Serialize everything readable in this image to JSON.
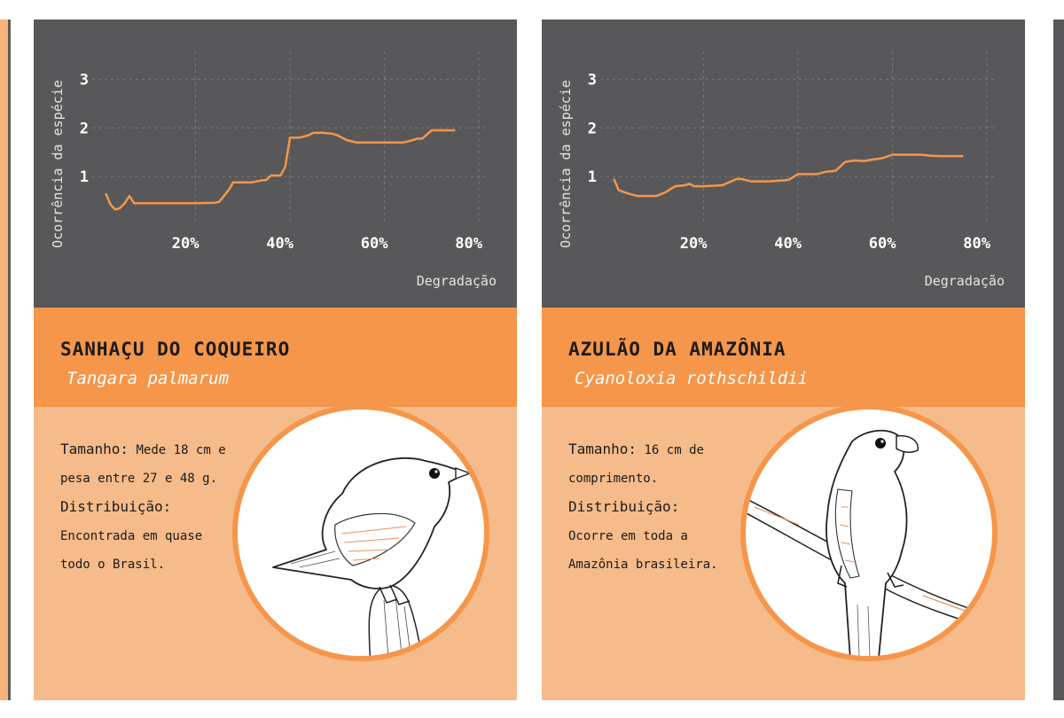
{
  "cards": [
    {
      "common_name": "SANHAÇU DO COQUEIRO",
      "scientific_name": "Tangara palmarum",
      "size_label": "Tamanho:",
      "size_text": "Mede 18 cm e pesa entre 27 e 48 g.",
      "distribution_label": "Distribuição:",
      "distribution_text": "Encontrada em quase todo o Brasil.",
      "illustration_icon": "bird-illustration-icon",
      "chart_data": {
        "type": "line",
        "ylabel": "Ocorrência da espécie",
        "xlabel": "Degradação",
        "x_ticks": [
          "20%",
          "40%",
          "60%",
          "80%"
        ],
        "y_ticks": [
          "1",
          "2",
          "3"
        ],
        "xlim": [
          0,
          80
        ],
        "ylim": [
          0,
          3.5
        ],
        "grid": true,
        "series": [
          {
            "color": "#f5964a",
            "x": [
              1,
              2,
              3,
              4,
              5,
              6,
              7,
              8,
              10,
              15,
              20,
              24,
              25,
              27,
              28,
              30,
              32,
              34,
              35,
              36,
              38,
              39,
              40,
              42,
              44,
              45,
              47,
              49,
              50,
              52,
              54,
              56,
              58,
              60,
              62,
              64,
              65,
              67,
              68,
              70,
              72,
              75
            ],
            "y": [
              0.65,
              0.42,
              0.32,
              0.35,
              0.45,
              0.6,
              0.45,
              0.45,
              0.45,
              0.45,
              0.45,
              0.46,
              0.48,
              0.72,
              0.88,
              0.88,
              0.88,
              0.92,
              0.93,
              1.02,
              1.02,
              1.2,
              1.8,
              1.8,
              1.85,
              1.9,
              1.9,
              1.88,
              1.85,
              1.75,
              1.7,
              1.7,
              1.7,
              1.7,
              1.7,
              1.7,
              1.72,
              1.78,
              1.78,
              1.95,
              1.95,
              1.95
            ]
          }
        ]
      }
    },
    {
      "common_name": "AZULÃO DA AMAZÔNIA",
      "scientific_name": "Cyanoloxia rothschildii",
      "size_label": "Tamanho:",
      "size_text": "16 cm de comprimento.",
      "distribution_label": "Distribuição:",
      "distribution_text": "Ocorre em toda a Amazônia brasileira.",
      "illustration_icon": "bird-on-branch-illustration-icon",
      "chart_data": {
        "type": "line",
        "ylabel": "Ocorrência da espécie",
        "xlabel": "Degradação",
        "x_ticks": [
          "20%",
          "40%",
          "60%",
          "80%"
        ],
        "y_ticks": [
          "1",
          "2",
          "3"
        ],
        "xlim": [
          0,
          80
        ],
        "ylim": [
          0,
          3.5
        ],
        "grid": true,
        "series": [
          {
            "color": "#f5964a",
            "x": [
              1,
              2,
              4,
              6,
              8,
              10,
              12,
              14,
              16,
              17,
              18,
              20,
              24,
              27,
              28,
              30,
              34,
              38,
              40,
              44,
              46,
              48,
              50,
              52,
              54,
              56,
              58,
              60,
              62,
              64,
              66,
              68,
              70,
              72,
              75
            ],
            "y": [
              0.95,
              0.72,
              0.65,
              0.6,
              0.6,
              0.6,
              0.68,
              0.8,
              0.82,
              0.85,
              0.8,
              0.8,
              0.82,
              0.95,
              0.95,
              0.9,
              0.9,
              0.93,
              1.05,
              1.05,
              1.1,
              1.12,
              1.3,
              1.33,
              1.32,
              1.35,
              1.38,
              1.45,
              1.45,
              1.45,
              1.45,
              1.43,
              1.42,
              1.42,
              1.42
            ]
          }
        ]
      }
    }
  ]
}
